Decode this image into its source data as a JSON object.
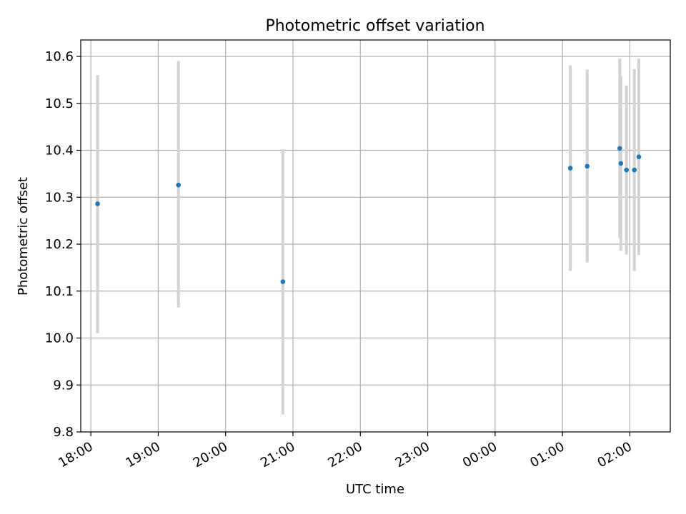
{
  "chart_data": {
    "type": "scatter",
    "title": "Photometric offset variation",
    "xlabel": "UTC time",
    "ylabel": "Photometric offset",
    "grid": true,
    "x_ticks": [
      "18:00",
      "19:00",
      "20:00",
      "21:00",
      "22:00",
      "23:00",
      "00:00",
      "01:00",
      "02:00"
    ],
    "xlim": [
      "17:51",
      "02:36"
    ],
    "ylim": [
      9.8,
      10.635
    ],
    "y_ticks": [
      "9.8",
      "9.9",
      "10.0",
      "10.1",
      "10.2",
      "10.3",
      "10.4",
      "10.5",
      "10.6"
    ],
    "points": [
      {
        "x": "18:06",
        "y": 10.286,
        "err_low": 10.01,
        "err_high": 10.56
      },
      {
        "x": "19:18",
        "y": 10.326,
        "err_low": 10.065,
        "err_high": 10.59
      },
      {
        "x": "20:51",
        "y": 10.12,
        "err_low": 9.837,
        "err_high": 10.402
      },
      {
        "x": "01:07",
        "y": 10.362,
        "err_low": 10.143,
        "err_high": 10.581
      },
      {
        "x": "01:22",
        "y": 10.366,
        "err_low": 10.161,
        "err_high": 10.572
      },
      {
        "x": "01:51",
        "y": 10.404,
        "err_low": 10.213,
        "err_high": 10.595
      },
      {
        "x": "01:52",
        "y": 10.372,
        "err_low": 10.186,
        "err_high": 10.558
      },
      {
        "x": "01:57",
        "y": 10.358,
        "err_low": 10.178,
        "err_high": 10.538
      },
      {
        "x": "02:04",
        "y": 10.358,
        "err_low": 10.143,
        "err_high": 10.573
      },
      {
        "x": "02:08",
        "y": 10.386,
        "err_low": 10.177,
        "err_high": 10.595
      }
    ],
    "colors": {
      "points": "#1f77b4",
      "errorbars": "#d3d3d3",
      "grid": "#b0b0b0"
    }
  }
}
